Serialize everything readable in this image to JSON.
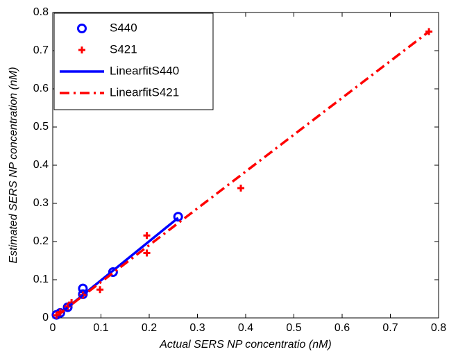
{
  "chart_data": {
    "type": "scatter",
    "xlabel": "Actual SERS NP concentratio (nM)",
    "ylabel": "Estimated SERS NP concentration (nM)",
    "xlim": [
      0,
      0.8
    ],
    "ylim": [
      0,
      0.8
    ],
    "xticks": [
      0,
      0.1,
      0.2,
      0.3,
      0.4,
      0.5,
      0.6,
      0.7,
      0.8
    ],
    "yticks": [
      0,
      0.1,
      0.2,
      0.3,
      0.4,
      0.5,
      0.6,
      0.7,
      0.8
    ],
    "grid": false,
    "legend": "upper left",
    "series": [
      {
        "name": "S440",
        "color": "#0000ff",
        "style": "circle",
        "x": [
          0.0078,
          0.0156,
          0.031,
          0.0625,
          0.0625,
          0.125,
          0.26
        ],
        "y": [
          0.008,
          0.013,
          0.028,
          0.062,
          0.077,
          0.12,
          0.265
        ]
      },
      {
        "name": "S421",
        "color": "#ff0000",
        "style": "plus",
        "x": [
          0.0078,
          0.0156,
          0.031,
          0.039,
          0.0625,
          0.098,
          0.195,
          0.195,
          0.39,
          0.78
        ],
        "y": [
          0.007,
          0.015,
          0.03,
          0.04,
          0.06,
          0.074,
          0.216,
          0.17,
          0.34,
          0.75
        ]
      },
      {
        "name": "LinearfitS440",
        "color": "#0000ff",
        "style": "solid",
        "x": [
          0.0078,
          0.26
        ],
        "y": [
          0.004,
          0.262
        ]
      },
      {
        "name": "LinearfitS421",
        "color": "#ff0000",
        "style": "dashdot",
        "x": [
          0.0078,
          0.78
        ],
        "y": [
          0.005,
          0.75
        ]
      }
    ]
  }
}
